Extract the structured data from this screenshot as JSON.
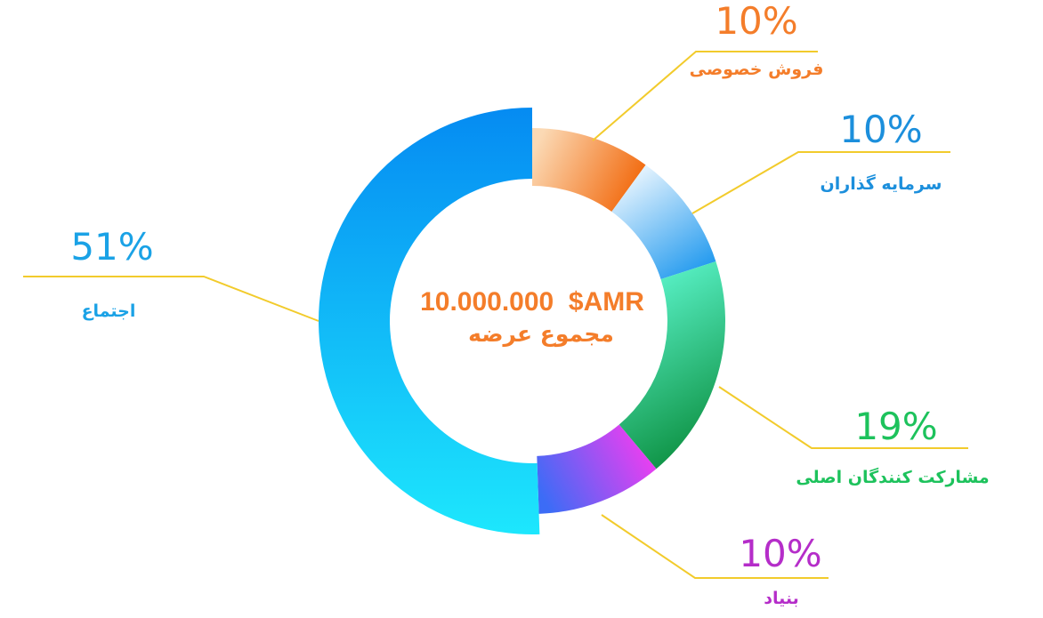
{
  "chart_data": {
    "type": "pie",
    "center": {
      "amount": "10.000.000  $AMR",
      "label": "مجموع عرضه"
    },
    "slices": [
      {
        "label": "فروش خصوصی",
        "value": 10,
        "value_text": "10%",
        "color_start": "#fbd9b4",
        "color_end": "#f26b10",
        "text_color": "#f47d2a"
      },
      {
        "label": "سرمایه گذاران",
        "value": 10,
        "value_text": "10%",
        "color_start": "#f1f9ff",
        "color_end": "#1e98ee",
        "text_color": "#1c8fdc"
      },
      {
        "label": "مشارکت کنندگان اصلی",
        "value": 19,
        "value_text": "19%",
        "color_start": "#5ef8d0",
        "color_end": "#0b8e3e",
        "text_color": "#1dc25c"
      },
      {
        "label": "بنیاد",
        "value": 10,
        "value_text": "10%",
        "color_start": "#3c6cf6",
        "color_end": "#f53cf0",
        "text_color": "#b52dc9"
      },
      {
        "label": "اجتماع",
        "value": 51,
        "value_text": "51%",
        "color_start": "#1de7fd",
        "color_end": "#058bf2",
        "text_color": "#1aa2e6"
      }
    ],
    "leader_color": "#f2cb2c",
    "center_color": "#f47d2a"
  }
}
